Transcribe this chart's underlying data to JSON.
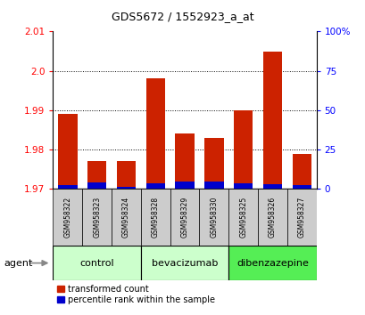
{
  "title": "GDS5672 / 1552923_a_at",
  "samples": [
    "GSM958322",
    "GSM958323",
    "GSM958324",
    "GSM958328",
    "GSM958329",
    "GSM958330",
    "GSM958325",
    "GSM958326",
    "GSM958327"
  ],
  "transformed_counts": [
    1.989,
    1.977,
    1.977,
    1.998,
    1.984,
    1.983,
    1.99,
    2.005,
    1.979
  ],
  "percentile_ranks": [
    2.5,
    4.0,
    1.5,
    3.5,
    5.0,
    4.5,
    3.5,
    3.0,
    2.5
  ],
  "ymin": 1.97,
  "ymax": 2.01,
  "yticks": [
    1.97,
    1.98,
    1.99,
    2.0,
    2.01
  ],
  "right_yticks": [
    0,
    25,
    50,
    75,
    100
  ],
  "right_yticklabels": [
    "0",
    "25",
    "50",
    "75",
    "100%"
  ],
  "bar_color_red": "#cc2200",
  "bar_color_blue": "#0000cc",
  "groups": [
    {
      "label": "control",
      "indices": [
        0,
        1,
        2
      ],
      "color": "#ccffcc"
    },
    {
      "label": "bevacizumab",
      "indices": [
        3,
        4,
        5
      ],
      "color": "#ccffcc"
    },
    {
      "label": "dibenzazepine",
      "indices": [
        6,
        7,
        8
      ],
      "color": "#55ee55"
    }
  ],
  "agent_label": "agent",
  "legend_red": "transformed count",
  "legend_blue": "percentile rank within the sample",
  "bar_width": 0.65,
  "base_value": 1.97,
  "bg_color": "#ffffff",
  "title_fontsize": 9,
  "tick_fontsize": 7.5,
  "sample_fontsize": 5.5,
  "group_fontsize": 8
}
